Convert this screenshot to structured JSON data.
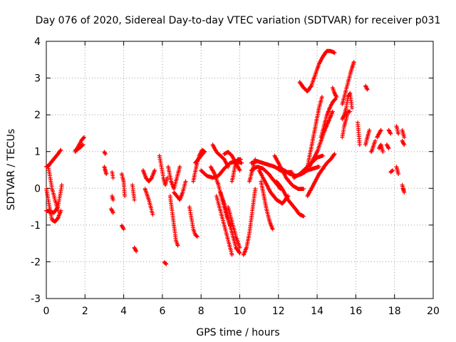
{
  "chart_data": {
    "type": "scatter",
    "title": "Day 076 of 2020, Sidereal Day-to-day VTEC variation (SDTVAR) for receiver p031",
    "xlabel": "GPS time / hours",
    "ylabel": "SDTVAR / TECUs",
    "xlim": [
      0,
      20
    ],
    "ylim": [
      -3,
      4
    ],
    "xticks": [
      "0",
      "2",
      "4",
      "6",
      "8",
      "10",
      "12",
      "14",
      "16",
      "18",
      "20"
    ],
    "yticks": [
      "-3",
      "-2",
      "-1",
      "0",
      "1",
      "2",
      "3",
      "4"
    ],
    "grid": true,
    "marker": "+",
    "color": "#ff0000",
    "series": [
      {
        "name": "p031",
        "tracks": [
          {
            "x": [
              0.0,
              0.15,
              0.3,
              0.45,
              0.6,
              0.75
            ],
            "y": [
              0.6,
              0.65,
              0.75,
              0.85,
              0.95,
              1.05
            ]
          },
          {
            "x": [
              0.0,
              0.1,
              0.2,
              0.3,
              0.45,
              0.6,
              0.75
            ],
            "y": [
              0.0,
              -0.3,
              -0.6,
              -0.85,
              -0.9,
              -0.8,
              -0.6
            ]
          },
          {
            "x": [
              0.1,
              0.2,
              0.3,
              0.45,
              0.6
            ],
            "y": [
              0.6,
              0.3,
              0.0,
              -0.3,
              -0.6
            ]
          },
          {
            "x": [
              0.0,
              0.2,
              0.4,
              0.6,
              0.8
            ],
            "y": [
              -0.6,
              -0.62,
              -0.65,
              -0.5,
              0.1
            ]
          },
          {
            "x": [
              1.5,
              1.65,
              1.8,
              1.95
            ],
            "y": [
              1.0,
              1.15,
              1.3,
              1.4
            ]
          },
          {
            "x": [
              1.5,
              1.7,
              1.9
            ],
            "y": [
              1.05,
              1.1,
              1.2
            ]
          },
          {
            "x": [
              3.0,
              3.05
            ],
            "y": [
              1.0,
              0.95
            ]
          },
          {
            "x": [
              3.0,
              3.05,
              3.1
            ],
            "y": [
              0.6,
              0.5,
              0.4
            ]
          },
          {
            "x": [
              3.4,
              3.45
            ],
            "y": [
              -0.2,
              -0.3
            ]
          },
          {
            "x": [
              3.35,
              3.45
            ],
            "y": [
              -0.55,
              -0.65
            ]
          },
          {
            "x": [
              3.4,
              3.45
            ],
            "y": [
              0.45,
              0.3
            ]
          },
          {
            "x": [
              3.9,
              4.0,
              4.05
            ],
            "y": [
              0.4,
              0.2,
              -0.2
            ]
          },
          {
            "x": [
              3.9,
              4.0
            ],
            "y": [
              -1.0,
              -1.1
            ]
          },
          {
            "x": [
              4.45,
              4.55
            ],
            "y": [
              0.1,
              -0.3
            ]
          },
          {
            "x": [
              4.55,
              4.65
            ],
            "y": [
              -1.6,
              -1.7
            ]
          },
          {
            "x": [
              5.0,
              5.15,
              5.3,
              5.45,
              5.6
            ],
            "y": [
              0.5,
              0.3,
              0.2,
              0.3,
              0.5
            ]
          },
          {
            "x": [
              5.1,
              5.3,
              5.5
            ],
            "y": [
              0.0,
              -0.3,
              -0.7
            ]
          },
          {
            "x": [
              5.85,
              5.95,
              6.05,
              6.15,
              6.25
            ],
            "y": [
              0.9,
              0.6,
              0.3,
              0.1,
              0.3
            ]
          },
          {
            "x": [
              6.1,
              6.2
            ],
            "y": [
              -2.0,
              -2.05
            ]
          },
          {
            "x": [
              6.3,
              6.45,
              6.6,
              6.75,
              6.9
            ],
            "y": [
              0.6,
              0.2,
              0.0,
              0.3,
              0.6
            ]
          },
          {
            "x": [
              6.4,
              6.5,
              6.6,
              6.7,
              6.8
            ],
            "y": [
              -0.2,
              -0.6,
              -1.0,
              -1.4,
              -1.55
            ]
          },
          {
            "x": [
              6.6,
              6.75,
              6.9,
              7.05,
              7.2
            ],
            "y": [
              -0.1,
              -0.2,
              -0.3,
              -0.1,
              0.2
            ]
          },
          {
            "x": [
              7.4,
              7.5,
              7.6,
              7.7,
              7.8
            ],
            "y": [
              -0.5,
              -0.8,
              -1.1,
              -1.25,
              -1.3
            ]
          },
          {
            "x": [
              7.6,
              7.75,
              7.9,
              8.05,
              8.2
            ],
            "y": [
              0.2,
              0.6,
              0.9,
              1.05,
              1.0
            ]
          },
          {
            "x": [
              7.7,
              7.85,
              8.0,
              8.15
            ],
            "y": [
              0.7,
              0.8,
              0.9,
              1.0
            ]
          },
          {
            "x": [
              8.0,
              8.3,
              8.6,
              8.9,
              9.2,
              9.5,
              9.8,
              10.1
            ],
            "y": [
              0.5,
              0.35,
              0.3,
              0.35,
              0.55,
              0.7,
              0.75,
              0.7
            ]
          },
          {
            "x": [
              8.5,
              8.7,
              8.9,
              9.1,
              9.3,
              9.5
            ],
            "y": [
              0.6,
              0.4,
              0.1,
              -0.3,
              -0.7,
              -1.0
            ]
          },
          {
            "x": [
              8.8,
              9.0,
              9.2,
              9.4,
              9.6
            ],
            "y": [
              -0.2,
              -0.6,
              -1.0,
              -1.4,
              -1.8
            ]
          },
          {
            "x": [
              9.0,
              9.2,
              9.4,
              9.6,
              9.8,
              10.0
            ],
            "y": [
              -0.1,
              -0.4,
              -0.8,
              -1.2,
              -1.6,
              -1.75
            ]
          },
          {
            "x": [
              9.4,
              9.6,
              9.8,
              10.0
            ],
            "y": [
              -0.5,
              -0.9,
              -1.3,
              -1.6
            ]
          },
          {
            "x": [
              8.6,
              8.8,
              9.0,
              9.2,
              9.4
            ],
            "y": [
              1.2,
              1.0,
              0.9,
              0.8,
              0.6
            ]
          },
          {
            "x": [
              9.2,
              9.4,
              9.6,
              9.8,
              10.0
            ],
            "y": [
              0.95,
              1.0,
              0.9,
              0.7,
              0.5
            ]
          },
          {
            "x": [
              9.6,
              9.75,
              9.9,
              10.05
            ],
            "y": [
              0.2,
              0.6,
              0.8,
              0.8
            ]
          },
          {
            "x": [
              10.2,
              10.35,
              10.5,
              10.65,
              10.8
            ],
            "y": [
              -1.8,
              -1.6,
              -1.2,
              -0.6,
              0.0
            ]
          },
          {
            "x": [
              10.5,
              10.6,
              10.7,
              10.8
            ],
            "y": [
              0.2,
              0.4,
              0.6,
              0.8
            ]
          },
          {
            "x": [
              10.6,
              10.9,
              11.2,
              11.5,
              11.8,
              12.1,
              12.4,
              12.7
            ],
            "y": [
              0.7,
              0.75,
              0.7,
              0.65,
              0.6,
              0.5,
              0.45,
              0.45
            ]
          },
          {
            "x": [
              10.6,
              10.9,
              11.2,
              11.5,
              11.8,
              12.1
            ],
            "y": [
              0.5,
              0.6,
              0.55,
              0.4,
              0.2,
              0.0
            ]
          },
          {
            "x": [
              11.1,
              11.25,
              11.4,
              11.55,
              11.7
            ],
            "y": [
              0.2,
              -0.2,
              -0.6,
              -0.9,
              -1.1
            ]
          },
          {
            "x": [
              11.0,
              11.3,
              11.6,
              11.9,
              12.2,
              12.5
            ],
            "y": [
              0.5,
              0.2,
              -0.1,
              -0.3,
              -0.4,
              -0.2
            ]
          },
          {
            "x": [
              11.9,
              12.2,
              12.5,
              12.8,
              13.1,
              13.3
            ],
            "y": [
              0.2,
              0.0,
              -0.3,
              -0.5,
              -0.7,
              -0.75
            ]
          },
          {
            "x": [
              11.8,
              12.1,
              12.4,
              12.7,
              13.0,
              13.3
            ],
            "y": [
              0.9,
              0.6,
              0.3,
              0.1,
              0.0,
              0.0
            ]
          },
          {
            "x": [
              12.0,
              12.3,
              12.6,
              12.9,
              13.2,
              13.5,
              13.8,
              14.1
            ],
            "y": [
              0.6,
              0.5,
              0.4,
              0.35,
              0.4,
              0.5,
              0.55,
              0.6
            ]
          },
          {
            "x": [
              12.8,
              13.1,
              13.4,
              13.7,
              14.0,
              14.3
            ],
            "y": [
              0.3,
              0.4,
              0.55,
              0.7,
              0.85,
              0.9
            ]
          },
          {
            "x": [
              13.5,
              13.7,
              13.9,
              14.1,
              14.3,
              14.5,
              14.7,
              14.9
            ],
            "y": [
              -0.2,
              0.0,
              0.2,
              0.4,
              0.55,
              0.7,
              0.8,
              0.95
            ]
          },
          {
            "x": [
              13.5,
              13.65,
              13.8,
              13.95,
              14.1,
              14.25
            ],
            "y": [
              0.6,
              1.0,
              1.4,
              1.8,
              2.2,
              2.5
            ]
          },
          {
            "x": [
              13.6,
              13.8,
              14.0,
              14.2,
              14.4,
              14.6,
              14.8
            ],
            "y": [
              0.6,
              0.8,
              1.0,
              1.3,
              1.6,
              1.85,
              2.1
            ]
          },
          {
            "x": [
              14.2,
              14.35,
              14.5,
              14.65,
              14.8,
              14.95
            ],
            "y": [
              1.4,
              1.7,
              2.0,
              2.2,
              2.35,
              2.45
            ]
          },
          {
            "x": [
              13.1,
              13.3,
              13.5,
              13.7,
              13.9,
              14.1,
              14.3,
              14.5,
              14.7,
              14.9
            ],
            "y": [
              2.9,
              2.75,
              2.65,
              2.8,
              3.1,
              3.4,
              3.6,
              3.75,
              3.75,
              3.7
            ]
          },
          {
            "x": [
              14.8,
              14.9,
              15.0
            ],
            "y": [
              2.75,
              2.6,
              2.5
            ]
          },
          {
            "x": [
              15.3,
              15.4,
              15.5,
              15.6,
              15.7,
              15.8
            ],
            "y": [
              1.9,
              2.0,
              2.2,
              2.5,
              2.6,
              2.2
            ]
          },
          {
            "x": [
              15.3,
              15.45,
              15.6,
              15.75,
              15.9
            ],
            "y": [
              2.3,
              2.6,
              2.9,
              3.2,
              3.45
            ]
          },
          {
            "x": [
              15.3,
              15.4,
              15.5,
              15.6,
              15.7
            ],
            "y": [
              1.4,
              1.7,
              1.9,
              2.1,
              2.1
            ]
          },
          {
            "x": [
              16.1,
              16.2
            ],
            "y": [
              1.8,
              1.2
            ]
          },
          {
            "x": [
              16.5,
              16.6
            ],
            "y": [
              2.8,
              2.7
            ]
          },
          {
            "x": [
              16.5,
              16.6,
              16.7
            ],
            "y": [
              1.2,
              1.4,
              1.6
            ]
          },
          {
            "x": [
              17.1,
              17.2,
              17.3
            ],
            "y": [
              1.4,
              1.5,
              1.6
            ]
          },
          {
            "x": [
              17.2,
              17.3,
              17.4
            ],
            "y": [
              1.1,
              1.2,
              1.0
            ]
          },
          {
            "x": [
              17.7,
              17.8
            ],
            "y": [
              1.6,
              1.5
            ]
          },
          {
            "x": [
              17.6,
              17.7
            ],
            "y": [
              1.2,
              1.1
            ]
          },
          {
            "x": [
              16.8,
              17.0
            ],
            "y": [
              1.0,
              1.3
            ]
          },
          {
            "x": [
              18.1,
              18.2
            ],
            "y": [
              1.7,
              1.5
            ]
          },
          {
            "x": [
              18.4,
              18.5
            ],
            "y": [
              1.6,
              1.4
            ]
          },
          {
            "x": [
              18.4,
              18.5
            ],
            "y": [
              1.3,
              1.2
            ]
          },
          {
            "x": [
              17.8,
              17.9
            ],
            "y": [
              0.45,
              0.5
            ]
          },
          {
            "x": [
              18.1,
              18.2
            ],
            "y": [
              0.6,
              0.4
            ]
          },
          {
            "x": [
              18.4,
              18.5,
              18.45
            ],
            "y": [
              0.1,
              -0.1,
              0.0
            ]
          }
        ]
      }
    ]
  }
}
